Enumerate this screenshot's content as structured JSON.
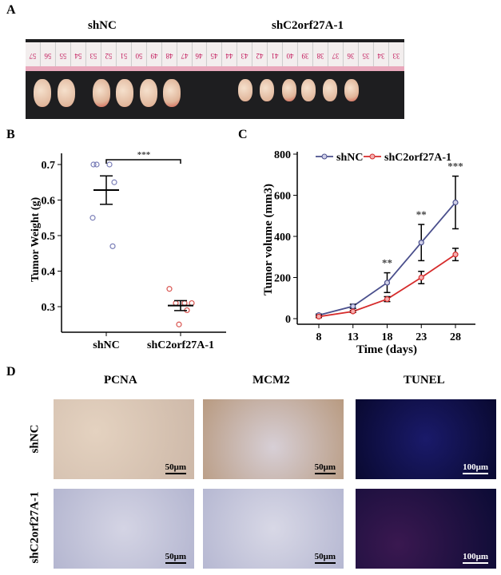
{
  "panels": {
    "a": "A",
    "b": "B",
    "c": "C",
    "d": "D"
  },
  "panel_a": {
    "groups": [
      "shNC",
      "shC2orf27A-1"
    ],
    "ruler": [
      "57",
      "56",
      "55",
      "54",
      "53",
      "52",
      "51",
      "50",
      "49",
      "48",
      "47",
      "46",
      "45",
      "44",
      "43",
      "42",
      "41",
      "40",
      "39",
      "38",
      "37",
      "36",
      "35",
      "34",
      "33"
    ]
  },
  "panel_d": {
    "columns": [
      "PCNA",
      "MCM2",
      "TUNEL"
    ],
    "rows": [
      "shNC",
      "shC2orf27A-1"
    ],
    "scale_bars": [
      "50μm",
      "50μm",
      "100μm"
    ]
  },
  "chart_data": [
    {
      "type": "scatter",
      "ylabel": "Tumor Weight (g)",
      "categories": [
        "shNC",
        "shC2orf27A-1"
      ],
      "yticks": [
        0.3,
        0.4,
        0.5,
        0.6,
        0.7
      ],
      "ylim": [
        0.22,
        0.74
      ],
      "series": [
        {
          "name": "shNC",
          "values": [
            0.7,
            0.7,
            0.7,
            0.65,
            0.55,
            0.47
          ],
          "mean": 0.628,
          "sem": 0.04,
          "color": "#7b7fb8"
        },
        {
          "name": "shC2orf27A-1",
          "values": [
            0.35,
            0.31,
            0.31,
            0.31,
            0.29,
            0.25
          ],
          "mean": 0.303,
          "sem": 0.014,
          "color": "#d9534f"
        }
      ],
      "annotation": "***"
    },
    {
      "type": "line",
      "xlabel": "Time (days)",
      "ylabel": "Tumor volume (mm3)",
      "x": [
        8,
        13,
        18,
        23,
        28
      ],
      "ylim": [
        0,
        800
      ],
      "yticks": [
        0,
        200,
        400,
        600,
        800
      ],
      "legend": "top",
      "series": [
        {
          "name": "shNC",
          "values": [
            17,
            60,
            175,
            370,
            565
          ],
          "errors": [
            5,
            10,
            48,
            88,
            128
          ],
          "color": "#4a4f8c"
        },
        {
          "name": "shC2orf27A-1",
          "values": [
            10,
            35,
            95,
            200,
            312
          ],
          "errors": [
            5,
            5,
            12,
            30,
            30
          ],
          "color": "#d62c2c"
        }
      ],
      "annotations": [
        {
          "x": 18,
          "text": "**"
        },
        {
          "x": 23,
          "text": "**"
        },
        {
          "x": 28,
          "text": "***"
        }
      ]
    }
  ]
}
